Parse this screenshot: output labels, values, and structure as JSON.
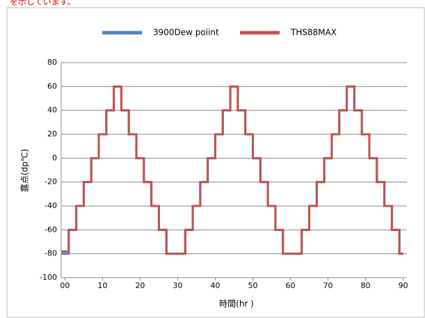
{
  "caption": "を示しています。",
  "chart_data": {
    "type": "step-line",
    "x_label": "時間(hr )",
    "y_label": "露点(dp℃)",
    "x": [
      -1,
      1,
      3,
      5,
      7,
      9,
      11,
      13,
      15,
      17,
      19,
      21,
      23,
      25,
      27,
      32,
      34,
      36,
      38,
      40,
      42,
      44,
      46,
      48,
      50,
      52,
      54,
      56,
      58,
      63,
      65,
      67,
      69,
      71,
      73,
      75,
      77,
      79,
      81,
      83,
      85,
      87,
      89,
      90
    ],
    "series": [
      {
        "name": "3900Dew poiint",
        "color": "#4f81bd",
        "values": [
          -80,
          -60,
          -40,
          -20,
          0,
          20,
          40,
          60,
          40,
          20,
          0,
          -20,
          -40,
          -60,
          -80,
          -60,
          -40,
          -20,
          0,
          20,
          40,
          60,
          40,
          20,
          0,
          -20,
          -40,
          -60,
          -80,
          -60,
          -40,
          -20,
          0,
          20,
          40,
          60,
          40,
          20,
          0,
          -20,
          -40,
          -60,
          -80,
          -80
        ]
      },
      {
        "name": "THS88MAX",
        "color": "#c0504d",
        "values": [
          -78,
          -60,
          -40,
          -20,
          0,
          20,
          40,
          60,
          40,
          20,
          0,
          -20,
          -40,
          -60,
          -80,
          -60,
          -40,
          -20,
          0,
          20,
          40,
          60,
          40,
          20,
          0,
          -20,
          -40,
          -60,
          -80,
          -60,
          -40,
          -20,
          0,
          20,
          40,
          60,
          40,
          20,
          0,
          -20,
          -40,
          -60,
          -80,
          -80
        ]
      }
    ],
    "xlim": [
      -1,
      91
    ],
    "xticks": [
      {
        "value": 0,
        "label": "00"
      },
      10,
      20,
      30,
      40,
      50,
      60,
      70,
      80,
      90
    ],
    "ylim": [
      -100,
      80
    ],
    "yticks": [
      -100,
      -80,
      -60,
      -40,
      -20,
      0,
      20,
      40,
      60,
      80
    ],
    "grid": true,
    "legend": "top"
  }
}
